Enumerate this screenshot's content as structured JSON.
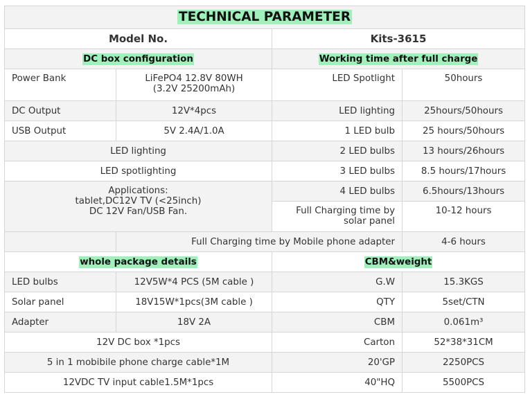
{
  "title": "TECHNICAL PARAMETER",
  "model": {
    "label": "Model No.",
    "value": "Kits-3615"
  },
  "dc_box": {
    "heading": "DC box configuration",
    "power_bank": {
      "label": "Power Bank",
      "value_line1": "LiFePO4 12.8V 80WH",
      "value_line2": "(3.2V 25200mAh)"
    },
    "dc_output": {
      "label": "DC Output",
      "value": "12V*4pcs"
    },
    "usb_output": {
      "label": "USB Output",
      "value": "5V 2.4A/1.0A"
    },
    "led_lighting": "LED lighting",
    "led_spotlighting": "LED spotlighting",
    "applications_line1": "Applications:",
    "applications_line2": "tablet,DC12V TV (<25inch)",
    "applications_line3": "DC 12V Fan/USB Fan."
  },
  "working_time": {
    "heading": "Working time after full charge",
    "rows": [
      {
        "label": "LED Spotlight",
        "value": "50hours"
      },
      {
        "label": "LED lighting",
        "value": "25hours/50hours"
      },
      {
        "label": "1 LED bulb",
        "value": "25 hours/50hours"
      },
      {
        "label": "2 LED bulbs",
        "value": "13 hours/26hours"
      },
      {
        "label": "3 LED bulbs",
        "value": "8.5 hours/17hours"
      },
      {
        "label": "4 LED bulbs",
        "value": "6.5hours/13hours"
      }
    ],
    "solar_charging": {
      "label_line1": "Full Charging time by",
      "label_line2": "solar panel",
      "value": "10-12 hours"
    },
    "mobile_charging": {
      "label": "Full Charging time by Mobile phone adapter",
      "value": "4-6 hours"
    }
  },
  "package": {
    "heading": "whole package details",
    "led_bulbs": {
      "label": "LED bulbs",
      "value": "12V5W*4 PCS (5M cable )"
    },
    "solar_panel": {
      "label": "Solar panel",
      "value": "18V15W*1pcs(3M cable )"
    },
    "adapter": {
      "label": "Adapter",
      "value": "18V 2A"
    },
    "extras": [
      "12V DC box *1pcs",
      "5 in 1 mobibile phone charge cable*1M",
      "12VDC TV input cable1.5M*1pcs"
    ]
  },
  "cbm": {
    "heading": "CBM&weight",
    "rows": [
      {
        "label": "G.W",
        "value": "15.3KGS"
      },
      {
        "label": "QTY",
        "value": "5set/CTN"
      },
      {
        "label": "CBM",
        "value": "0.061m³"
      },
      {
        "label": "Carton",
        "value": "52*38*31CM"
      },
      {
        "label": "20'GP",
        "value": "2250PCS"
      },
      {
        "label": "40\"HQ",
        "value": "5500PCS"
      }
    ]
  }
}
